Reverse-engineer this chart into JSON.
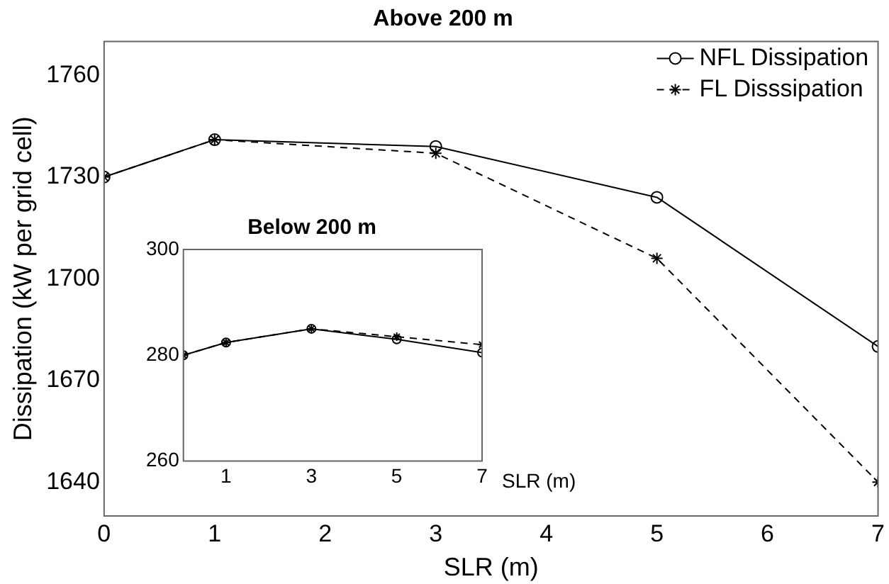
{
  "chart_data": [
    {
      "type": "line",
      "title": "Above 200 m",
      "xlabel": "SLR (m)",
      "ylabel": "Dissipation (kW per grid cell)",
      "x": [
        0,
        1,
        3,
        5,
        7
      ],
      "xlim": [
        0,
        7
      ],
      "xticks": [
        0,
        1,
        2,
        3,
        4,
        5,
        6,
        7
      ],
      "ylim": [
        1630,
        1770
      ],
      "yticks": [
        1640,
        1670,
        1700,
        1730,
        1760
      ],
      "grid": false,
      "legend": "top right",
      "series": [
        {
          "name": "NFL Dissipation",
          "color": "#000000",
          "marker": "circle",
          "line_style": "solid",
          "values": [
            1730,
            1741,
            1739,
            1724,
            1680
          ]
        },
        {
          "name": "FL Disssipation",
          "color": "#000000",
          "marker": "cross",
          "line_style": "dashed",
          "values": [
            1730,
            1741,
            1737,
            1706,
            1640
          ]
        }
      ]
    },
    {
      "type": "line",
      "title": "Below 200 m",
      "xlabel": "SLR (m)",
      "x": [
        0,
        1,
        3,
        5,
        7
      ],
      "xlim": [
        0,
        7
      ],
      "xticks": [
        1,
        3,
        5,
        7
      ],
      "ylim": [
        260,
        300
      ],
      "yticks": [
        260,
        280,
        300
      ],
      "grid": false,
      "series": [
        {
          "color": "#000000",
          "marker": "circle",
          "line_style": "solid",
          "values": [
            280,
            282.4,
            285,
            283,
            280.5
          ]
        },
        {
          "color": "#000000",
          "marker": "cross",
          "line_style": "dashed",
          "values": [
            280,
            282.4,
            285,
            283.5,
            282
          ]
        }
      ]
    }
  ]
}
